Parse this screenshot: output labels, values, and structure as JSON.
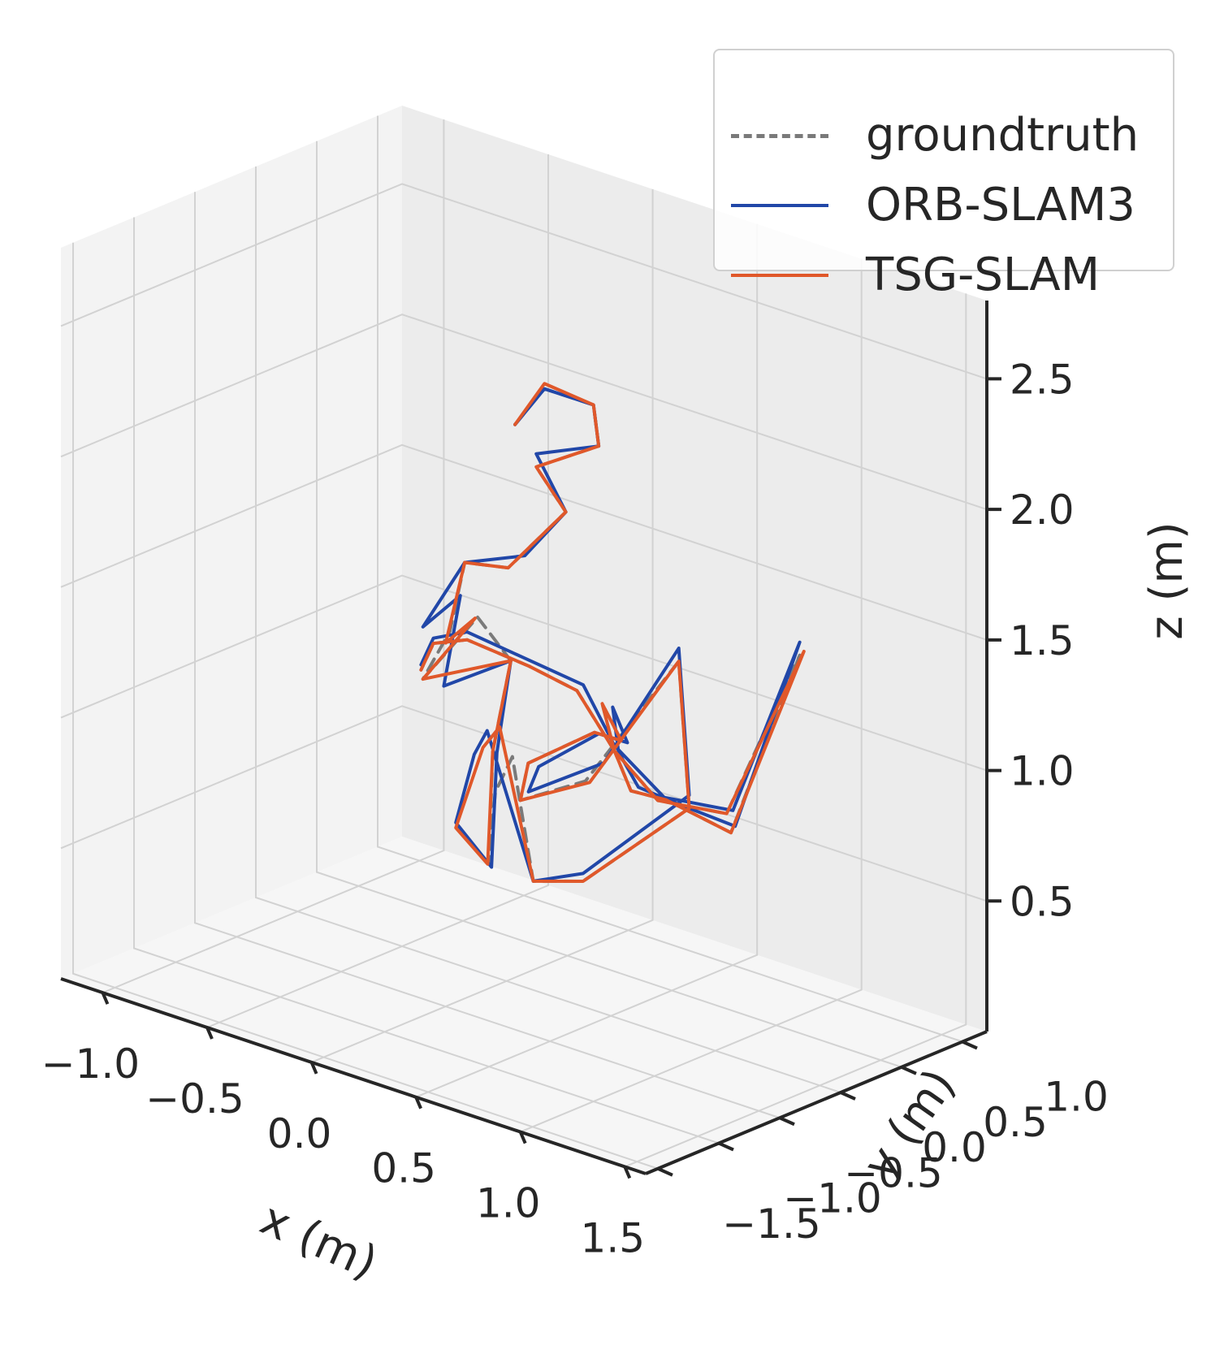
{
  "chart_data": {
    "type": "line",
    "projection": "3d",
    "title": "",
    "xlabel": "x (m)",
    "ylabel": "y (m)",
    "zlabel": "z (m)",
    "xlim": [
      -1.2,
      1.6
    ],
    "ylim": [
      -1.6,
      1.2
    ],
    "zlim": [
      0.0,
      2.8
    ],
    "x_ticks": [
      "−1.0",
      "−0.5",
      "0.0",
      "0.5",
      "1.0",
      "1.5"
    ],
    "y_ticks": [
      "−1.5",
      "−1.0",
      "−0.5",
      "0.0",
      "0.5",
      "1.0"
    ],
    "z_ticks": [
      "0.5",
      "1.0",
      "1.5",
      "2.0",
      "2.5"
    ],
    "grid": true,
    "legend_position": "top-right",
    "series": [
      {
        "name": "groundtruth",
        "color": "#7a7a7a",
        "dash": true,
        "x": [
          -0.28,
          -0.18,
          0.02,
          0.08,
          -0.12,
          0.08,
          -0.05,
          -0.2,
          -0.3,
          -0.4,
          -0.15,
          0.05,
          0.08,
          0.12,
          0.18,
          0.25,
          0.35,
          0.6,
          1.05,
          1.0,
          0.6,
          0.3,
          0.25,
          0.48,
          0.52,
          0.4,
          0.4,
          0.45,
          0.6,
          0.9,
          1.2,
          0.85,
          0.55,
          0.4,
          0.25,
          0.05,
          -0.2,
          -0.35,
          -0.38
        ],
        "y": [
          0.55,
          0.62,
          0.68,
          0.62,
          0.45,
          0.35,
          0.1,
          0.0,
          0.05,
          0.0,
          0.02,
          -0.05,
          -0.25,
          -0.35,
          -0.4,
          -0.38,
          -0.38,
          -0.4,
          -0.3,
          -0.3,
          -0.38,
          -0.4,
          -0.25,
          -0.1,
          0.05,
          0.1,
          0.2,
          0.25,
          0.28,
          0.3,
          0.35,
          0.35,
          0.3,
          0.2,
          0.15,
          0.1,
          0.02,
          0.0,
          -0.05
        ],
        "z": [
          1.95,
          2.1,
          2.08,
          1.95,
          1.85,
          1.75,
          1.55,
          1.55,
          1.25,
          1.05,
          1.35,
          1.25,
          0.95,
          0.55,
          0.85,
          1.0,
          0.55,
          0.62,
          1.0,
          1.55,
          1.0,
          0.85,
          0.95,
          1.1,
          1.05,
          1.15,
          0.95,
          0.8,
          0.8,
          0.75,
          1.5,
          0.8,
          0.78,
          0.95,
          1.15,
          1.2,
          1.25,
          1.2,
          1.1
        ]
      },
      {
        "name": "ORB-SLAM3",
        "color": "#2147a8",
        "dash": false,
        "x": [
          -0.28,
          -0.18,
          0.02,
          0.08,
          -0.12,
          0.08,
          0.0,
          -0.2,
          -0.4,
          -0.25,
          -0.3,
          0.05,
          0.1,
          0.15,
          0.02,
          0.05,
          0.1,
          0.35,
          0.6,
          1.05,
          1.0,
          0.7,
          0.35,
          0.3,
          0.5,
          0.55,
          0.45,
          0.42,
          0.48,
          0.65,
          0.92,
          1.2,
          0.88,
          0.58,
          0.4,
          0.28,
          0.08,
          -0.2,
          -0.35,
          -0.38
        ],
        "y": [
          0.55,
          0.62,
          0.68,
          0.62,
          0.45,
          0.35,
          0.15,
          0.0,
          0.0,
          0.05,
          0.0,
          -0.05,
          -0.25,
          -0.38,
          -0.45,
          -0.35,
          -0.33,
          -0.38,
          -0.4,
          -0.3,
          -0.3,
          -0.4,
          -0.42,
          -0.25,
          -0.1,
          0.05,
          0.1,
          0.2,
          0.26,
          0.28,
          0.3,
          0.35,
          0.35,
          0.3,
          0.2,
          0.15,
          0.1,
          0.02,
          0.0,
          -0.05
        ],
        "z": [
          1.95,
          2.1,
          2.08,
          1.95,
          1.9,
          1.75,
          1.6,
          1.55,
          1.25,
          1.4,
          1.05,
          1.25,
          0.95,
          0.55,
          0.7,
          0.95,
          1.05,
          0.55,
          0.65,
          1.05,
          1.6,
          1.1,
          0.9,
          0.95,
          1.1,
          1.05,
          1.15,
          0.95,
          0.82,
          0.8,
          0.78,
          1.55,
          0.82,
          0.8,
          0.97,
          1.18,
          1.22,
          1.28,
          1.22,
          1.12
        ]
      },
      {
        "name": "TSG-SLAM",
        "color": "#e0582a",
        "dash": false,
        "x": [
          -0.28,
          -0.18,
          0.02,
          0.08,
          -0.12,
          0.08,
          -0.05,
          -0.2,
          -0.32,
          -0.15,
          -0.4,
          0.05,
          0.08,
          0.12,
          0.02,
          0.08,
          0.16,
          0.35,
          0.6,
          1.05,
          1.0,
          0.62,
          0.3,
          0.25,
          0.48,
          0.52,
          0.4,
          0.4,
          0.45,
          0.6,
          0.9,
          1.22,
          0.85,
          0.55,
          0.4,
          0.25,
          0.05,
          -0.2,
          -0.35,
          -0.38
        ],
        "y": [
          0.55,
          0.62,
          0.68,
          0.62,
          0.45,
          0.35,
          0.1,
          0.0,
          0.05,
          0.0,
          0.0,
          -0.05,
          -0.25,
          -0.36,
          -0.45,
          -0.33,
          -0.33,
          -0.38,
          -0.4,
          -0.3,
          -0.3,
          -0.38,
          -0.4,
          -0.25,
          -0.1,
          0.05,
          0.1,
          0.2,
          0.25,
          0.28,
          0.3,
          0.35,
          0.35,
          0.3,
          0.2,
          0.15,
          0.1,
          0.02,
          0.0,
          -0.05
        ],
        "z": [
          1.95,
          2.12,
          2.08,
          1.95,
          1.85,
          1.75,
          1.55,
          1.55,
          1.2,
          1.35,
          1.05,
          1.25,
          0.95,
          0.55,
          0.68,
          0.98,
          1.08,
          0.55,
          0.62,
          1.0,
          1.55,
          1.0,
          0.85,
          0.95,
          1.1,
          1.05,
          1.15,
          0.95,
          0.8,
          0.8,
          0.75,
          1.52,
          0.8,
          0.78,
          0.95,
          1.15,
          1.2,
          1.25,
          1.2,
          1.1
        ]
      }
    ]
  }
}
